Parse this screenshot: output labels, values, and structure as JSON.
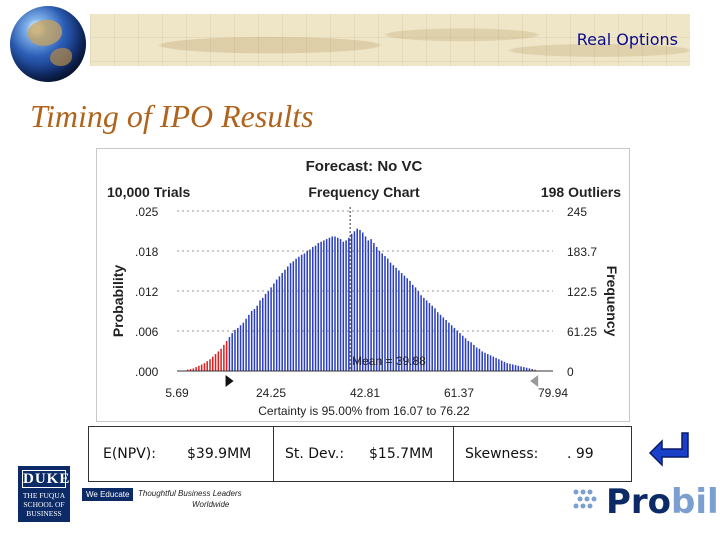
{
  "header": {
    "title": "Real Options"
  },
  "slide": {
    "title": "Timing of IPO Results"
  },
  "chart_data": {
    "type": "bar",
    "title": "Forecast: No VC",
    "subtitle": "Frequency Chart",
    "trials_label": "10,000 Trials",
    "outliers_label": "198 Outliers",
    "ylabel": "Probability",
    "y2label": "Frequency",
    "y_ticks": [
      ".025",
      ".018",
      ".012",
      ".006",
      ".000"
    ],
    "y2_ticks": [
      "245",
      "183.7",
      "122.5",
      "61.25",
      "0"
    ],
    "x_ticks": [
      "5.69",
      "24.25",
      "42.81",
      "61.37",
      "79.94"
    ],
    "xlim": [
      5.69,
      79.94
    ],
    "ylim": [
      0,
      245
    ],
    "mean_label": "Mean = 39.88",
    "mean_value": 39.88,
    "certainty_label": "Certainty is 95.00% from 16.07 to 76.22",
    "certainty_range": [
      16.07,
      76.22
    ],
    "colors": {
      "inside": "#2c3fbf",
      "outside": "#e02020"
    },
    "values": [
      2,
      3,
      4,
      6,
      8,
      10,
      12,
      15,
      18,
      22,
      26,
      30,
      34,
      40,
      46,
      52,
      58,
      63,
      66,
      70,
      74,
      80,
      86,
      92,
      95,
      100,
      108,
      112,
      118,
      122,
      128,
      134,
      140,
      145,
      150,
      155,
      160,
      165,
      168,
      172,
      175,
      178,
      180,
      184,
      186,
      190,
      192,
      196,
      198,
      200,
      202,
      204,
      206,
      206,
      204,
      202,
      198,
      200,
      204,
      210,
      214,
      218,
      216,
      212,
      206,
      200,
      202,
      196,
      190,
      184,
      180,
      176,
      172,
      166,
      162,
      158,
      154,
      150,
      146,
      142,
      138,
      132,
      128,
      122,
      116,
      112,
      108,
      104,
      100,
      96,
      90,
      86,
      82,
      78,
      74,
      70,
      66,
      62,
      58,
      54,
      50,
      46,
      44,
      40,
      36,
      34,
      30,
      28,
      26,
      24,
      22,
      20,
      18,
      16,
      14,
      12,
      11,
      10,
      9,
      8,
      7,
      6,
      5,
      4,
      3,
      2
    ]
  },
  "stats": {
    "enpv_label": "E(NPV):",
    "enpv_value": "$39.9MM",
    "stdev_label": "St. Dev.:",
    "stdev_value": "$15.7MM",
    "skew_label": "Skewness:",
    "skew_value": ". 99"
  },
  "logos": {
    "duke_line1": "DUKE",
    "duke_line2": "THE FUQUA SCHOOL OF BUSINESS",
    "tagline_a": "We Educate",
    "tagline_b": "Thoughtful Business Leaders",
    "tagline_c": "Worldwide",
    "probil_a": "Pro",
    "probil_b": "bil",
    "probil_colors": {
      "pro": "#0b2a66",
      "bil": "#7a9fd0"
    }
  }
}
